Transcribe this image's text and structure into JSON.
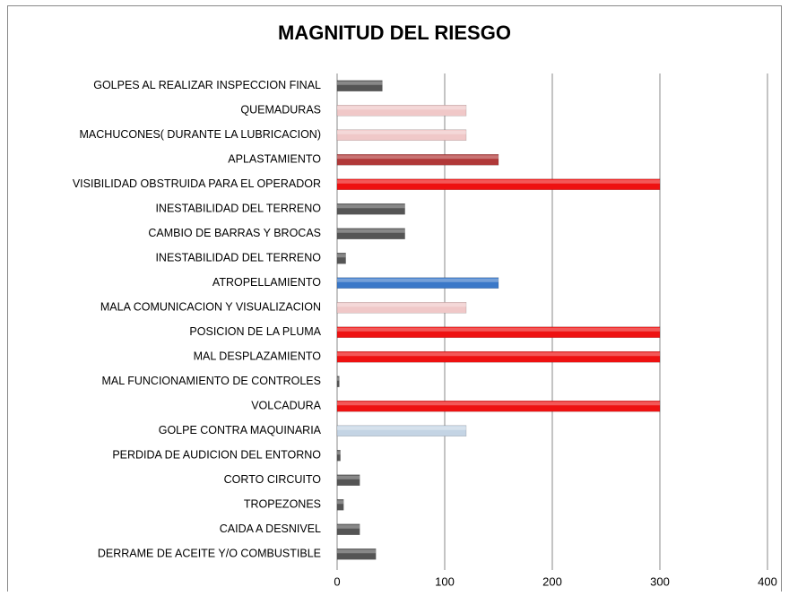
{
  "chart_data": {
    "type": "hbar",
    "title": "MAGNITUD DEL RIESGO",
    "categories": [
      "GOLPES AL REALIZAR INSPECCION FINAL",
      "QUEMADURAS ",
      "MACHUCONES( DURANTE LA LUBRICACION)",
      "APLASTAMIENTO",
      "VISIBILIDAD OBSTRUIDA PARA EL OPERADOR",
      "INESTABILIDAD DEL TERRENO",
      "CAMBIO DE BARRAS Y BROCAS",
      "INESTABILIDAD DEL TERRENO",
      "ATROPELLAMIENTO ",
      "MALA COMUNICACION Y VISUALIZACION",
      "POSICION DE LA PLUMA",
      "MAL DESPLAZAMIENTO ",
      "MAL FUNCIONAMIENTO DE CONTROLES ",
      "VOLCADURA",
      "GOLPE CONTRA MAQUINARIA",
      "PERDIDA DE AUDICION DEL ENTORNO ",
      "CORTO CIRCUITO",
      "TROPEZONES ",
      "CAIDA A DESNIVEL",
      "DERRAME DE ACEITE Y/O COMBUSTIBLE"
    ],
    "values": [
      42,
      120,
      120,
      150,
      300,
      63,
      63,
      8,
      150,
      120,
      300,
      300,
      2,
      300,
      120,
      3,
      21,
      6,
      21,
      36
    ],
    "colors": [
      "#555555",
      "#f0c8c8",
      "#f0c8c8",
      "#b03838",
      "#ee1111",
      "#555555",
      "#555555",
      "#555555",
      "#3a78c8",
      "#f0c8c8",
      "#ee1111",
      "#ee1111",
      "#555555",
      "#ee1111",
      "#c4d4e4",
      "#555555",
      "#555555",
      "#555555",
      "#555555",
      "#555555"
    ],
    "xlim": [
      0,
      400
    ],
    "xticks": [
      0,
      100,
      200,
      300,
      400
    ],
    "grid": true
  }
}
